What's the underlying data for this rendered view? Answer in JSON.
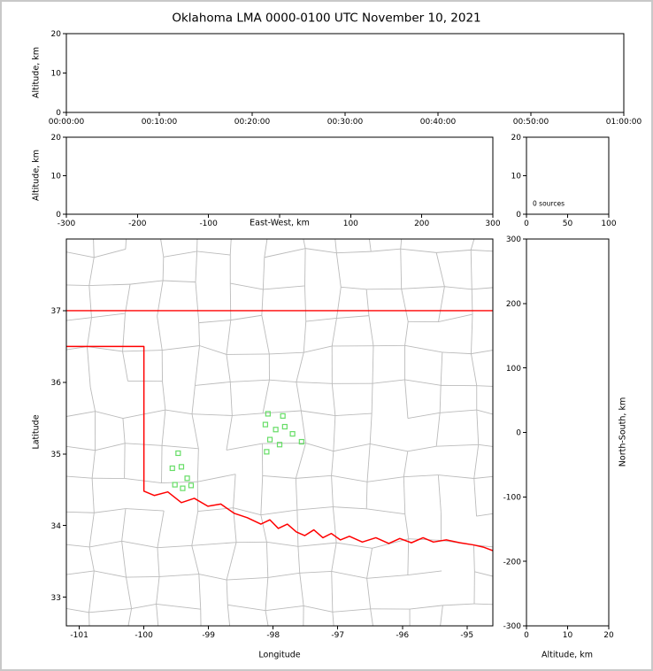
{
  "figure": {
    "background": "#ffffff",
    "frame_color": "#c8c8c8"
  },
  "chart_data": {
    "type": "scatter",
    "title": "Oklahoma LMA 0000-0100 UTC November 10, 2021",
    "colors": {
      "axis": "#000000",
      "county_lines": "#bbbbbb",
      "state_border": "#ff0000",
      "station_marker": "#66dd66"
    },
    "panels": {
      "time_height": {
        "ylabel": "Altitude, km",
        "ylim": [
          0,
          20
        ],
        "yticks": [
          0,
          10,
          20
        ],
        "xtick_labels": [
          "00:00:00",
          "00:10:00",
          "00:20:00",
          "00:30:00",
          "00:40:00",
          "00:50:00",
          "01:00:00"
        ],
        "points": []
      },
      "east_west_height": {
        "ylabel": "Altitude, km",
        "xlabel": "East-West, km",
        "ylim": [
          0,
          20
        ],
        "yticks": [
          0,
          10,
          20
        ],
        "xlim": [
          -300,
          300
        ],
        "xticks": [
          -300,
          -200,
          -100,
          0,
          100,
          200,
          300
        ],
        "xtick_labels": [
          "-300",
          "-200",
          "-100",
          "",
          "100",
          "200",
          "300"
        ],
        "points": []
      },
      "source_histogram": {
        "annotation": "0 sources",
        "ylim": [
          0,
          20
        ],
        "yticks": [
          0,
          10,
          20
        ],
        "xlim": [
          0,
          100
        ],
        "xticks": [
          0,
          50,
          100
        ],
        "values": []
      },
      "plan_view": {
        "xlabel": "Longitude",
        "ylabel": "Latitude",
        "xlim": [
          -101.2,
          -94.6
        ],
        "ylim": [
          32.6,
          38.0
        ],
        "xticks": [
          -101,
          -100,
          -99,
          -98,
          -97,
          -96,
          -95
        ],
        "yticks": [
          33,
          34,
          35,
          36,
          37
        ],
        "points": []
      },
      "north_south_height": {
        "xlabel": "Altitude, km",
        "ylabel": "North-South, km",
        "xlim": [
          0,
          20
        ],
        "xticks": [
          0,
          10,
          20
        ],
        "ylim": [
          -300,
          300
        ],
        "yticks": [
          -300,
          -200,
          -100,
          0,
          100,
          200,
          300
        ],
        "points": []
      }
    },
    "stations_lon_lat": [
      [
        -99.47,
        35.01
      ],
      [
        -99.56,
        34.8
      ],
      [
        -99.42,
        34.82
      ],
      [
        -99.33,
        34.66
      ],
      [
        -99.52,
        34.57
      ],
      [
        -99.4,
        34.52
      ],
      [
        -99.27,
        34.56
      ],
      [
        -98.08,
        35.56
      ],
      [
        -97.85,
        35.53
      ],
      [
        -98.12,
        35.41
      ],
      [
        -97.96,
        35.34
      ],
      [
        -97.82,
        35.38
      ],
      [
        -97.7,
        35.28
      ],
      [
        -98.05,
        35.2
      ],
      [
        -97.9,
        35.13
      ],
      [
        -98.1,
        35.03
      ],
      [
        -97.56,
        35.17
      ]
    ],
    "oklahoma_border": {
      "north_border_37": [
        [
          -101.2,
          37.0
        ],
        [
          -94.6,
          37.0
        ]
      ],
      "panhandle_and_west_border": [
        [
          -101.2,
          36.5
        ],
        [
          -100.0,
          36.5
        ],
        [
          -100.0,
          34.48
        ]
      ],
      "red_river": [
        [
          -100.0,
          34.48
        ],
        [
          -99.84,
          34.42
        ],
        [
          -99.63,
          34.47
        ],
        [
          -99.42,
          34.32
        ],
        [
          -99.22,
          34.38
        ],
        [
          -99.01,
          34.27
        ],
        [
          -98.81,
          34.3
        ],
        [
          -98.6,
          34.17
        ],
        [
          -98.4,
          34.11
        ],
        [
          -98.19,
          34.02
        ],
        [
          -98.05,
          34.08
        ],
        [
          -97.92,
          33.96
        ],
        [
          -97.78,
          34.02
        ],
        [
          -97.64,
          33.91
        ],
        [
          -97.51,
          33.86
        ],
        [
          -97.37,
          33.94
        ],
        [
          -97.23,
          33.83
        ],
        [
          -97.1,
          33.89
        ],
        [
          -96.96,
          33.8
        ],
        [
          -96.82,
          33.85
        ],
        [
          -96.62,
          33.77
        ],
        [
          -96.41,
          33.83
        ],
        [
          -96.21,
          33.75
        ],
        [
          -96.04,
          33.82
        ],
        [
          -95.86,
          33.76
        ],
        [
          -95.68,
          33.83
        ],
        [
          -95.52,
          33.77
        ],
        [
          -95.32,
          33.8
        ],
        [
          -95.11,
          33.76
        ],
        [
          -94.9,
          33.73
        ],
        [
          -94.75,
          33.7
        ],
        [
          -94.6,
          33.65
        ]
      ]
    },
    "basemap": {
      "county_grid_seed": 11,
      "county_cell_deg": [
        0.54,
        0.45
      ]
    }
  }
}
